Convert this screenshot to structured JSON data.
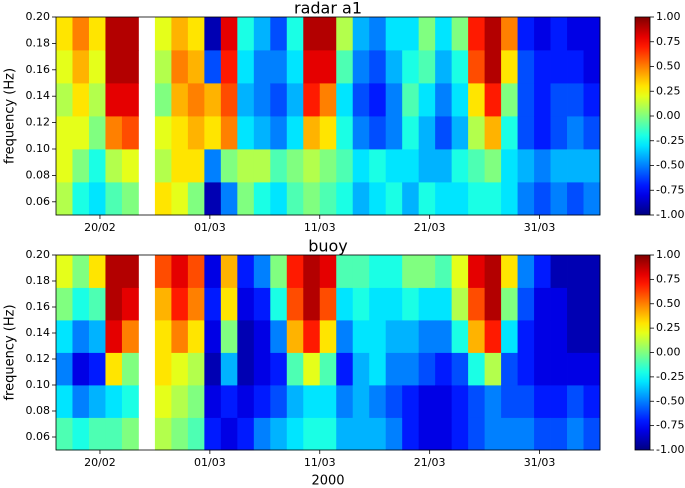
{
  "chart_data": [
    {
      "type": "heatmap",
      "title": "radar a1",
      "ylabel": "frequency (Hz)",
      "colormap": "jet",
      "x_bins": [
        0,
        1.5,
        3,
        4.5,
        6,
        7.5,
        9,
        10.5,
        12,
        13.5,
        15,
        16.5,
        18,
        19.5,
        21,
        22.5,
        24,
        25.5,
        27,
        28.5,
        30,
        31.5,
        33,
        34.5,
        36,
        37.5,
        39,
        40.5,
        42,
        43.5,
        45,
        46.5,
        48,
        49.5
      ],
      "y_bins": [
        0.05,
        0.075,
        0.1,
        0.125,
        0.15,
        0.175,
        0.2
      ],
      "xlim": [
        0,
        49.5
      ],
      "ylim": [
        0.05,
        0.2
      ],
      "xticks": [
        {
          "value": 4,
          "label": "20/02"
        },
        {
          "value": 14,
          "label": "01/03"
        },
        {
          "value": 24,
          "label": "11/03"
        },
        {
          "value": 34,
          "label": "21/03"
        },
        {
          "value": 44,
          "label": "31/03"
        }
      ],
      "yticks": [
        0.06,
        0.08,
        {
          "value": 0.1,
          "label": "0.10"
        },
        0.12,
        0.14,
        0.16,
        0.18,
        {
          "value": 0.2,
          "label": "0.20"
        }
      ],
      "clim": [
        -1,
        1
      ],
      "cticks": [
        {
          "value": -1,
          "label": "-1.00"
        },
        -0.75,
        {
          "value": -0.5,
          "label": "-0.50"
        },
        -0.25,
        {
          "value": 0,
          "label": "0.00"
        },
        0.25,
        {
          "value": 0.5,
          "label": "0.50"
        },
        0.75,
        {
          "value": 1,
          "label": "1.00"
        }
      ],
      "z": [
        [
          0.1,
          0.2,
          0.2,
          0.1,
          0.2,
          0.3
        ],
        [
          -0.2,
          0,
          0.2,
          0.3,
          0.4,
          0.5
        ],
        [
          -0.3,
          -0.2,
          0,
          0.1,
          0.2,
          0.3
        ],
        [
          -0.1,
          0.1,
          0.5,
          0.8,
          0.9,
          0.9
        ],
        [
          0,
          0.2,
          0.6,
          0.8,
          0.9,
          0.9
        ],
        [
          null,
          null,
          null,
          null,
          null,
          null
        ],
        [
          0.3,
          0.1,
          0.2,
          0,
          0.1,
          0.2
        ],
        [
          0.2,
          0.3,
          0.3,
          0.4,
          0.5,
          0.4
        ],
        [
          0,
          0.3,
          0.4,
          0.5,
          0.4,
          0.3
        ],
        [
          -0.9,
          -0.5,
          0.3,
          0.4,
          -0.6,
          -0.9
        ],
        [
          -0.5,
          0,
          0.5,
          0.6,
          0.7,
          0.8
        ],
        [
          0,
          0.1,
          -0.3,
          -0.4,
          -0.3,
          -0.2
        ],
        [
          -0.2,
          0.1,
          -0.4,
          -0.5,
          -0.5,
          -0.4
        ],
        [
          -0.3,
          -0.1,
          -0.5,
          -0.6,
          -0.5,
          -0.6
        ],
        [
          -0.1,
          0,
          -0.3,
          -0.4,
          -0.3,
          -0.2
        ],
        [
          0,
          0.1,
          0.4,
          0.7,
          0.8,
          0.9
        ],
        [
          -0.1,
          0,
          0.3,
          0.5,
          0.8,
          0.9
        ],
        [
          -0.2,
          -0.1,
          -0.2,
          -0.3,
          -0.1,
          0.1
        ],
        [
          -0.4,
          -0.3,
          -0.5,
          -0.6,
          -0.5,
          -0.4
        ],
        [
          -0.3,
          -0.2,
          -0.6,
          -0.7,
          -0.6,
          -0.5
        ],
        [
          -0.2,
          -0.3,
          -0.5,
          -0.5,
          -0.4,
          -0.3
        ],
        [
          -0.4,
          -0.3,
          -0.2,
          -0.1,
          -0.2,
          -0.3
        ],
        [
          -0.2,
          -0.4,
          -0.4,
          -0.3,
          -0.1,
          0
        ],
        [
          -0.3,
          -0.4,
          -0.6,
          -0.5,
          -0.4,
          -0.3
        ],
        [
          -0.3,
          -0.2,
          -0.4,
          -0.3,
          -0.2,
          0
        ],
        [
          -0.2,
          -0.1,
          0.1,
          0.3,
          0.6,
          0.7
        ],
        [
          -0.2,
          0,
          0.4,
          0.7,
          0.9,
          0.9
        ],
        [
          -0.3,
          -0.3,
          -0.2,
          0,
          0.3,
          0.5
        ],
        [
          -0.5,
          -0.4,
          -0.6,
          -0.6,
          -0.6,
          -0.7
        ],
        [
          -0.6,
          -0.5,
          -0.7,
          -0.7,
          -0.7,
          -0.8
        ],
        [
          -0.5,
          -0.4,
          -0.6,
          -0.6,
          -0.7,
          -0.7
        ],
        [
          -0.6,
          -0.4,
          -0.5,
          -0.6,
          -0.7,
          -0.8
        ],
        [
          -0.5,
          -0.4,
          -0.6,
          -0.7,
          -0.8,
          -0.8
        ]
      ]
    },
    {
      "type": "heatmap",
      "title": "buoy",
      "ylabel": "frequency (Hz)",
      "xlabel": "2000",
      "colormap": "jet",
      "x_bins": [
        0,
        1.5,
        3,
        4.5,
        6,
        7.5,
        9,
        10.5,
        12,
        13.5,
        15,
        16.5,
        18,
        19.5,
        21,
        22.5,
        24,
        25.5,
        27,
        28.5,
        30,
        31.5,
        33,
        34.5,
        36,
        37.5,
        39,
        40.5,
        42,
        43.5,
        45,
        46.5,
        48,
        49.5
      ],
      "y_bins": [
        0.05,
        0.075,
        0.1,
        0.125,
        0.15,
        0.175,
        0.2
      ],
      "xlim": [
        0,
        49.5
      ],
      "ylim": [
        0.05,
        0.2
      ],
      "xticks": [
        {
          "value": 4,
          "label": "20/02"
        },
        {
          "value": 14,
          "label": "01/03"
        },
        {
          "value": 24,
          "label": "11/03"
        },
        {
          "value": 34,
          "label": "21/03"
        },
        {
          "value": 44,
          "label": "31/03"
        }
      ],
      "yticks": [
        0.06,
        0.08,
        {
          "value": 0.1,
          "label": "0.10"
        },
        0.12,
        0.14,
        0.16,
        0.18,
        {
          "value": 0.2,
          "label": "0.20"
        }
      ],
      "clim": [
        -1,
        1
      ],
      "cticks": [
        {
          "value": -1,
          "label": "-1.00"
        },
        -0.75,
        {
          "value": -0.5,
          "label": "-0.50"
        },
        -0.25,
        {
          "value": 0,
          "label": "0.00"
        },
        0.25,
        {
          "value": 0.5,
          "label": "0.50"
        },
        0.75,
        {
          "value": 1,
          "label": "1.00"
        }
      ],
      "z": [
        [
          -0.1,
          -0.3,
          -0.5,
          -0.3,
          0,
          0.2
        ],
        [
          -0.2,
          -0.5,
          -0.8,
          -0.5,
          -0.2,
          0
        ],
        [
          -0.1,
          -0.4,
          -0.7,
          -0.4,
          -0.1,
          0.3
        ],
        [
          -0.1,
          -0.3,
          0.3,
          0.8,
          0.9,
          0.9
        ],
        [
          0,
          -0.2,
          0,
          0.5,
          0.8,
          0.9
        ],
        [
          null,
          null,
          null,
          null,
          null,
          null
        ],
        [
          0.1,
          0.2,
          0.3,
          0.3,
          0.4,
          0.6
        ],
        [
          0,
          0.1,
          0.2,
          0.5,
          0.7,
          0.8
        ],
        [
          -0.1,
          0,
          0.1,
          0.3,
          0.5,
          0.6
        ],
        [
          -0.7,
          -0.8,
          -0.9,
          -0.8,
          -0.7,
          -0.8
        ],
        [
          -0.8,
          -0.7,
          -0.4,
          0,
          0.3,
          0.4
        ],
        [
          -0.7,
          -0.8,
          -0.9,
          -0.9,
          -0.8,
          -0.7
        ],
        [
          -0.5,
          -0.7,
          -0.8,
          -0.8,
          -0.7,
          -0.5
        ],
        [
          -0.4,
          -0.6,
          -0.7,
          -0.5,
          -0.2,
          0
        ],
        [
          -0.3,
          -0.4,
          -0.1,
          0.4,
          0.6,
          0.7
        ],
        [
          -0.2,
          -0.3,
          0.2,
          0.7,
          0.9,
          0.9
        ],
        [
          -0.2,
          -0.3,
          -0.1,
          0.3,
          0.6,
          0.8
        ],
        [
          -0.4,
          -0.5,
          -0.7,
          -0.5,
          -0.3,
          -0.1
        ],
        [
          -0.4,
          -0.4,
          -0.4,
          -0.3,
          -0.2,
          -0.1
        ],
        [
          -0.4,
          -0.5,
          -0.3,
          -0.3,
          -0.3,
          -0.2
        ],
        [
          -0.5,
          -0.6,
          -0.5,
          -0.4,
          -0.3,
          -0.2
        ],
        [
          -0.7,
          -0.7,
          -0.5,
          -0.4,
          -0.2,
          0
        ],
        [
          -0.8,
          -0.8,
          -0.6,
          -0.5,
          -0.3,
          0
        ],
        [
          -0.8,
          -0.8,
          -0.7,
          -0.5,
          -0.3,
          -0.1
        ],
        [
          -0.7,
          -0.7,
          -0.6,
          -0.2,
          0.1,
          0.2
        ],
        [
          -0.6,
          -0.6,
          -0.2,
          0.4,
          0.6,
          0.8
        ],
        [
          -0.5,
          -0.5,
          0.1,
          0.7,
          0.9,
          0.9
        ],
        [
          -0.5,
          -0.6,
          -0.6,
          -0.3,
          0,
          0.3
        ],
        [
          -0.5,
          -0.6,
          -0.7,
          -0.7,
          -0.6,
          -0.5
        ],
        [
          -0.6,
          -0.7,
          -0.8,
          -0.8,
          -0.8,
          -0.7
        ],
        [
          -0.6,
          -0.7,
          -0.8,
          -0.8,
          -0.8,
          -0.9
        ],
        [
          -0.5,
          -0.6,
          -0.8,
          -0.9,
          -0.9,
          -0.9
        ],
        [
          -0.6,
          -0.7,
          -0.8,
          -0.9,
          -0.9,
          -0.9
        ]
      ]
    }
  ]
}
